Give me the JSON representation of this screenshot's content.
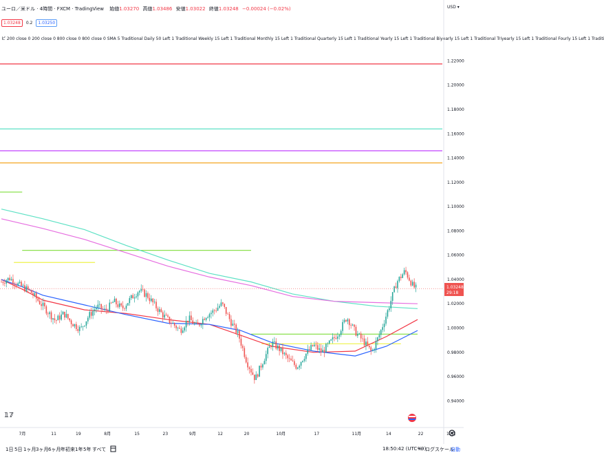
{
  "header": {
    "symbol": "ユーロ／米ドル · 4時間 · FXCM · TradingView",
    "open_label": "始値",
    "open": "1.03270",
    "high_label": "高値",
    "high": "1.03486",
    "low_label": "安値",
    "low": "1.03022",
    "close_label": "終値",
    "close": "1.03248",
    "change": "−0.00024 (−0.02%)"
  },
  "price_boxes": {
    "bid": "1.03248",
    "spread": "0.2",
    "ask": "1.03250"
  },
  "indicator_text": "ピ 200 close 0 200 close 0 800 close 0 800 close 0 SMA 5 Traditional Daily 50 Left 1 Traditional Weekly 15 Left 1 Traditional Monthly 15 Left 1 Traditional Quarterly 15 Left 1 Traditional Yearly 15 Left 1 Traditional Biyearly 15 Left 1 Traditional Triyearly 15 Left 1 Traditional Fourly 15 Left 1 Traditi",
  "scale_header": "USD ▾",
  "current_price_label": {
    "price": "1.03248",
    "countdown": "29:18"
  },
  "time_ranges": [
    "1日",
    "5日",
    "1ヶ月",
    "3ヶ月",
    "6ヶ月",
    "年初来",
    "1年",
    "5年",
    "すべて"
  ],
  "bottom_right": {
    "clock": "18:50:42 (UTC+9)",
    "percent": "%",
    "log": "ログスケール",
    "auto": "自動"
  },
  "colors": {
    "up": "#26a69a",
    "down": "#ef5350",
    "ma_red": "#f23645",
    "ma_blue": "#2962ff",
    "ma_teal": "#5ce1c4",
    "ma_pink": "#e66ee0",
    "pivot_magenta": "#e040fb",
    "pivot_orange": "#f5a623",
    "pivot_yellow": "#eef24a",
    "pivot_green": "#8be04e"
  },
  "chart_data": {
    "type": "candlestick",
    "ylim": [
      0.93,
      1.235
    ],
    "y_ticks": [
      "1.22000",
      "1.20000",
      "1.18000",
      "1.16000",
      "1.14000",
      "1.12000",
      "1.10000",
      "1.08000",
      "1.06000",
      "1.04000",
      "1.02000",
      "1.00000",
      "0.98000",
      "0.96000",
      "0.94000"
    ],
    "x_ticks": [
      "7月",
      "11",
      "19",
      "8月",
      "15",
      "23",
      "9月",
      "12",
      "20",
      "10月",
      "17",
      "11月",
      "14",
      "22",
      "12月"
    ],
    "price_path": [
      [
        0,
        1.038
      ],
      [
        4,
        1.041
      ],
      [
        8,
        1.036
      ],
      [
        14,
        1.03
      ],
      [
        18,
        1.022
      ],
      [
        22,
        1.014
      ],
      [
        26,
        1.006
      ],
      [
        30,
        1.012
      ],
      [
        34,
        1.004
      ],
      [
        38,
        0.999
      ],
      [
        42,
        1.01
      ],
      [
        46,
        1.018
      ],
      [
        50,
        1.014
      ],
      [
        54,
        1.022
      ],
      [
        58,
        1.016
      ],
      [
        62,
        1.024
      ],
      [
        66,
        1.031
      ],
      [
        70,
        1.027
      ],
      [
        74,
        1.018
      ],
      [
        78,
        1.01
      ],
      [
        82,
        1.004
      ],
      [
        86,
        0.998
      ],
      [
        90,
        1.008
      ],
      [
        94,
        1.001
      ],
      [
        98,
        1.01
      ],
      [
        102,
        1.014
      ],
      [
        106,
        1.02
      ],
      [
        110,
        1.006
      ],
      [
        114,
        0.994
      ],
      [
        118,
        0.972
      ],
      [
        122,
        0.958
      ],
      [
        126,
        0.974
      ],
      [
        130,
        0.988
      ],
      [
        134,
        0.982
      ],
      [
        138,
        0.974
      ],
      [
        142,
        0.968
      ],
      [
        146,
        0.978
      ],
      [
        150,
        0.986
      ],
      [
        154,
        0.98
      ],
      [
        158,
        0.988
      ],
      [
        162,
        0.996
      ],
      [
        166,
        1.009
      ],
      [
        170,
        0.997
      ],
      [
        174,
        0.989
      ],
      [
        178,
        0.98
      ],
      [
        182,
        0.996
      ],
      [
        186,
        1.016
      ],
      [
        190,
        1.038
      ],
      [
        194,
        1.047
      ],
      [
        198,
        1.034
      ],
      [
        200,
        1.032
      ]
    ],
    "moving_averages": [
      {
        "color": "#5ce1c4",
        "points": [
          [
            0,
            1.098
          ],
          [
            20,
            1.09
          ],
          [
            40,
            1.081
          ],
          [
            60,
            1.068
          ],
          [
            80,
            1.056
          ],
          [
            100,
            1.045
          ],
          [
            120,
            1.038
          ],
          [
            140,
            1.028
          ],
          [
            160,
            1.022
          ],
          [
            180,
            1.018
          ],
          [
            200,
            1.016
          ]
        ]
      },
      {
        "color": "#e66ee0",
        "points": [
          [
            0,
            1.09
          ],
          [
            20,
            1.082
          ],
          [
            40,
            1.073
          ],
          [
            60,
            1.062
          ],
          [
            80,
            1.051
          ],
          [
            100,
            1.042
          ],
          [
            120,
            1.035
          ],
          [
            140,
            1.026
          ],
          [
            160,
            1.022
          ],
          [
            180,
            1.021
          ],
          [
            200,
            1.02
          ]
        ]
      },
      {
        "color": "#f23645",
        "points": [
          [
            0,
            1.04
          ],
          [
            10,
            1.032
          ],
          [
            20,
            1.023
          ],
          [
            40,
            1.015
          ],
          [
            60,
            1.012
          ],
          [
            80,
            1.007
          ],
          [
            100,
            1.003
          ],
          [
            115,
            0.994
          ],
          [
            130,
            0.985
          ],
          [
            150,
            0.98
          ],
          [
            170,
            0.981
          ],
          [
            185,
            0.993
          ],
          [
            200,
            1.007
          ]
        ]
      },
      {
        "color": "#2962ff",
        "points": [
          [
            0,
            1.04
          ],
          [
            10,
            1.034
          ],
          [
            20,
            1.027
          ],
          [
            40,
            1.019
          ],
          [
            60,
            1.011
          ],
          [
            80,
            1.004
          ],
          [
            100,
            1.003
          ],
          [
            115,
            0.998
          ],
          [
            130,
            0.988
          ],
          [
            150,
            0.981
          ],
          [
            170,
            0.977
          ],
          [
            185,
            0.985
          ],
          [
            200,
            0.998
          ]
        ]
      }
    ],
    "horizontal_levels": [
      {
        "price": 1.2175,
        "color": "#f23645"
      },
      {
        "price": 1.164,
        "color": "#5ce1c4"
      },
      {
        "price": 1.146,
        "color": "#c040ff"
      },
      {
        "price": 1.136,
        "color": "#f5a623"
      },
      {
        "price": 1.112,
        "color": "#8be04e",
        "x_end": 10
      },
      {
        "price": 1.064,
        "color": "#8be04e",
        "x_start": 10,
        "x_end": 120
      },
      {
        "price": 1.054,
        "color": "#eef24a",
        "x_start": 6,
        "x_end": 45
      },
      {
        "price": 0.995,
        "color": "#8be04e",
        "x_start": 120,
        "x_end": 200
      },
      {
        "price": 0.987,
        "color": "#eef24a",
        "x_start": 125,
        "x_end": 192
      }
    ],
    "current_price": 1.03248
  }
}
